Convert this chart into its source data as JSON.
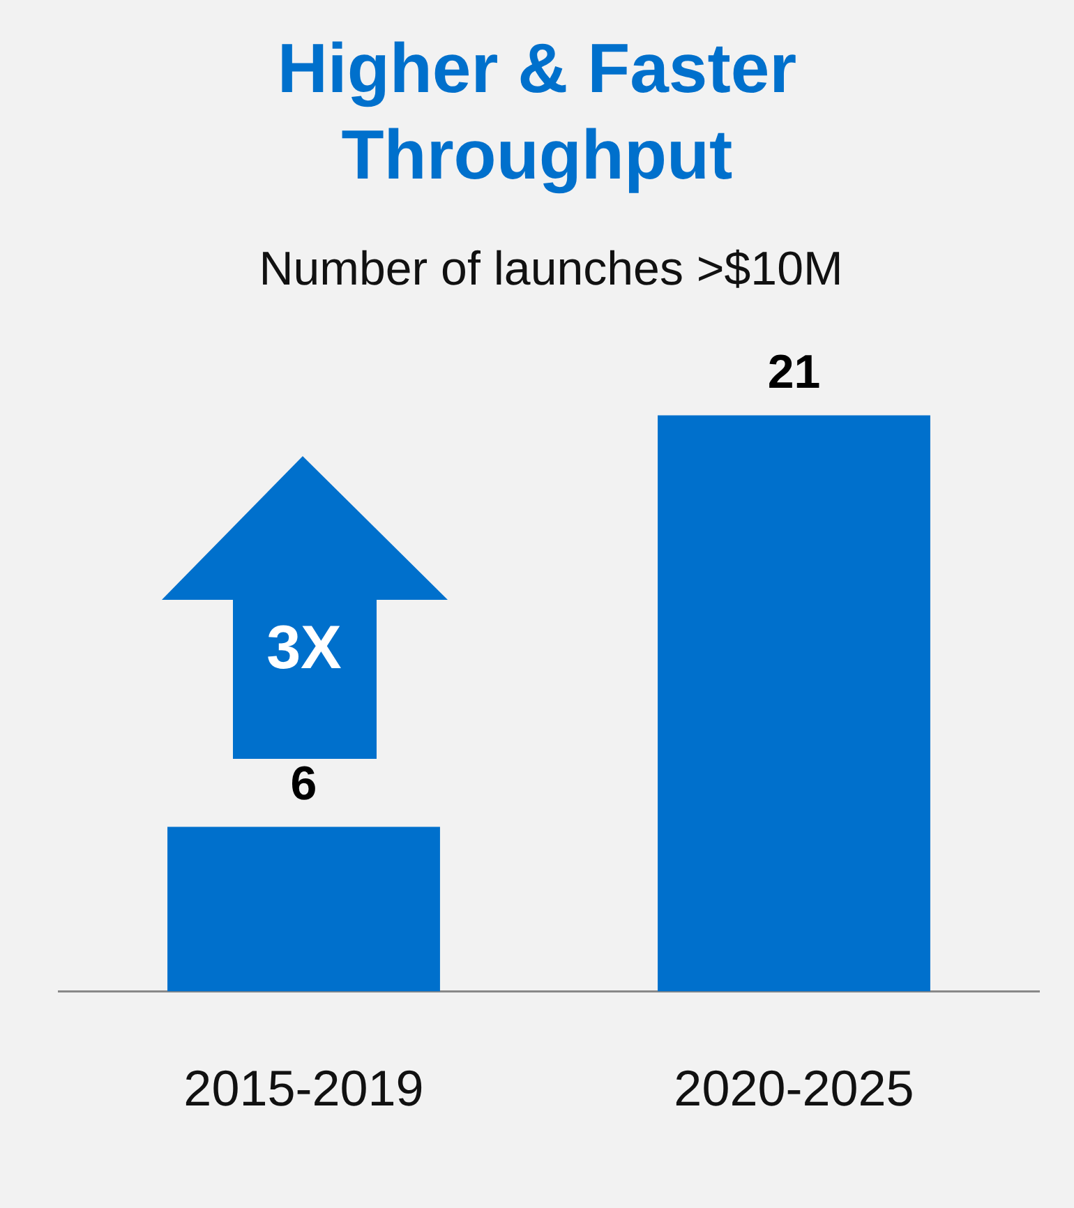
{
  "chart_data": {
    "type": "bar",
    "title": "Higher & Faster Throughput",
    "subtitle": "Number of launches >$10M",
    "categories": [
      "2015-2019",
      "2020-2025"
    ],
    "values": [
      6,
      21
    ],
    "color": "#0070cc",
    "data_labels": true,
    "grid": false,
    "legend": false,
    "annotations": [
      "3X"
    ]
  }
}
